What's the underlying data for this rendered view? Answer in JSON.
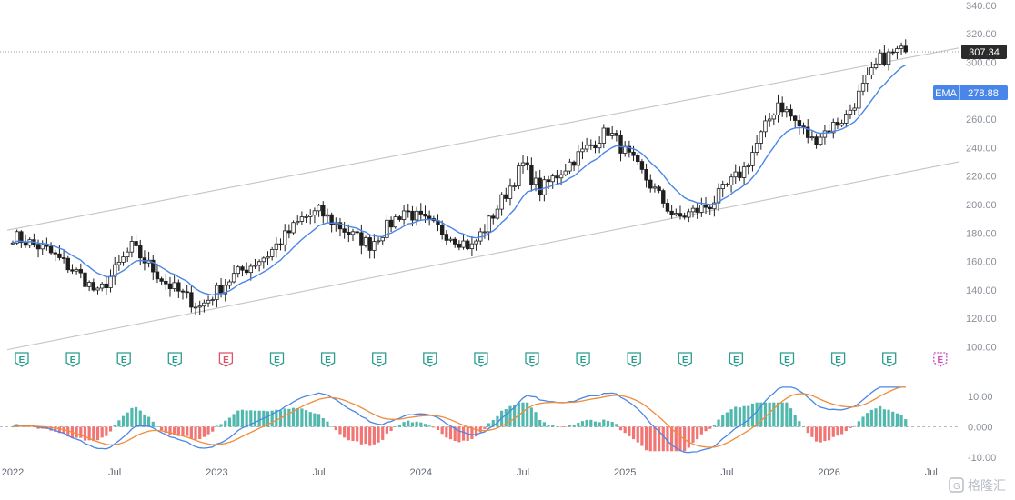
{
  "watermark": "格隆汇",
  "colors": {
    "up": "#26a69a",
    "down": "#ef5350",
    "candle": "#1f1f1f",
    "ema": "#4a86e8",
    "macd": "#4a86e8",
    "signal": "#f08c3a",
    "channel": "#c4c4c4",
    "earnings": "#2a9d8f",
    "earnings_miss": "#e05263",
    "earnings_future": "#c850c0"
  },
  "price_badge": {
    "value": "307.34"
  },
  "ema_badge": {
    "label": "EMA",
    "value": "278.88"
  },
  "chart_data": {
    "type": "candlestick",
    "price_axis": {
      "ticks": [
        "340.00",
        "320.00",
        "300.00",
        "280.00",
        "260.00",
        "240.00",
        "220.00",
        "200.00",
        "180.00",
        "160.00",
        "140.00",
        "120.00",
        "100.00"
      ],
      "ylim": [
        100,
        340
      ]
    },
    "macd_axis": {
      "ticks": [
        "10.00",
        "0.000",
        "-10.00"
      ],
      "ylim": [
        -10,
        10
      ]
    },
    "time_axis": [
      "2022",
      "Jul",
      "2023",
      "Jul",
      "2024",
      "Jul",
      "2025",
      "Jul",
      "2026",
      "Jul"
    ],
    "channel": [
      {
        "name": "upper",
        "start": [
          "2022-01",
          182
        ],
        "end": [
          "2026-07",
          310
        ]
      },
      {
        "name": "lower",
        "start": [
          "2022-01",
          98
        ],
        "end": [
          "2026-07",
          230
        ]
      }
    ],
    "price_anchors": [
      [
        "2022-01",
        178
      ],
      [
        "2022-03",
        168
      ],
      [
        "2022-05",
        150
      ],
      [
        "2022-06",
        137
      ],
      [
        "2022-08",
        170
      ],
      [
        "2022-10",
        145
      ],
      [
        "2022-12",
        128
      ],
      [
        "2023-02",
        150
      ],
      [
        "2023-04",
        165
      ],
      [
        "2023-06",
        190
      ],
      [
        "2023-07",
        195
      ],
      [
        "2023-09",
        178
      ],
      [
        "2023-10",
        172
      ],
      [
        "2023-12",
        196
      ],
      [
        "2024-02",
        183
      ],
      [
        "2024-04",
        170
      ],
      [
        "2024-05",
        188
      ],
      [
        "2024-07",
        228
      ],
      [
        "2024-08",
        210
      ],
      [
        "2024-10",
        232
      ],
      [
        "2024-12",
        252
      ],
      [
        "2025-02",
        222
      ],
      [
        "2025-04",
        190
      ],
      [
        "2025-06",
        200
      ],
      [
        "2025-08",
        225
      ],
      [
        "2025-10",
        272
      ],
      [
        "2025-12",
        245
      ],
      [
        "2026-02",
        262
      ],
      [
        "2026-04",
        302
      ],
      [
        "2026-05",
        307.34
      ]
    ],
    "ema": {
      "name": "EMA",
      "last": 278.88
    },
    "earnings": [
      {
        "date": "2022-01",
        "label": "E",
        "status": "report"
      },
      {
        "date": "2022-04",
        "label": "E",
        "status": "report"
      },
      {
        "date": "2022-07",
        "label": "E",
        "status": "report"
      },
      {
        "date": "2022-10",
        "label": "E",
        "status": "report"
      },
      {
        "date": "2023-01",
        "label": "E",
        "status": "miss"
      },
      {
        "date": "2023-04",
        "label": "E",
        "status": "report"
      },
      {
        "date": "2023-07",
        "label": "E",
        "status": "report"
      },
      {
        "date": "2023-10",
        "label": "E",
        "status": "report"
      },
      {
        "date": "2024-01",
        "label": "E",
        "status": "report"
      },
      {
        "date": "2024-04",
        "label": "E",
        "status": "report"
      },
      {
        "date": "2024-07",
        "label": "E",
        "status": "report"
      },
      {
        "date": "2024-10",
        "label": "E",
        "status": "report"
      },
      {
        "date": "2025-01",
        "label": "E",
        "status": "report"
      },
      {
        "date": "2025-04",
        "label": "E",
        "status": "report"
      },
      {
        "date": "2025-07",
        "label": "E",
        "status": "report"
      },
      {
        "date": "2025-10",
        "label": "E",
        "status": "report"
      },
      {
        "date": "2026-01",
        "label": "E",
        "status": "report"
      },
      {
        "date": "2026-04",
        "label": "E",
        "status": "report"
      },
      {
        "date": "2026-07",
        "label": "E",
        "status": "upcoming"
      }
    ]
  }
}
